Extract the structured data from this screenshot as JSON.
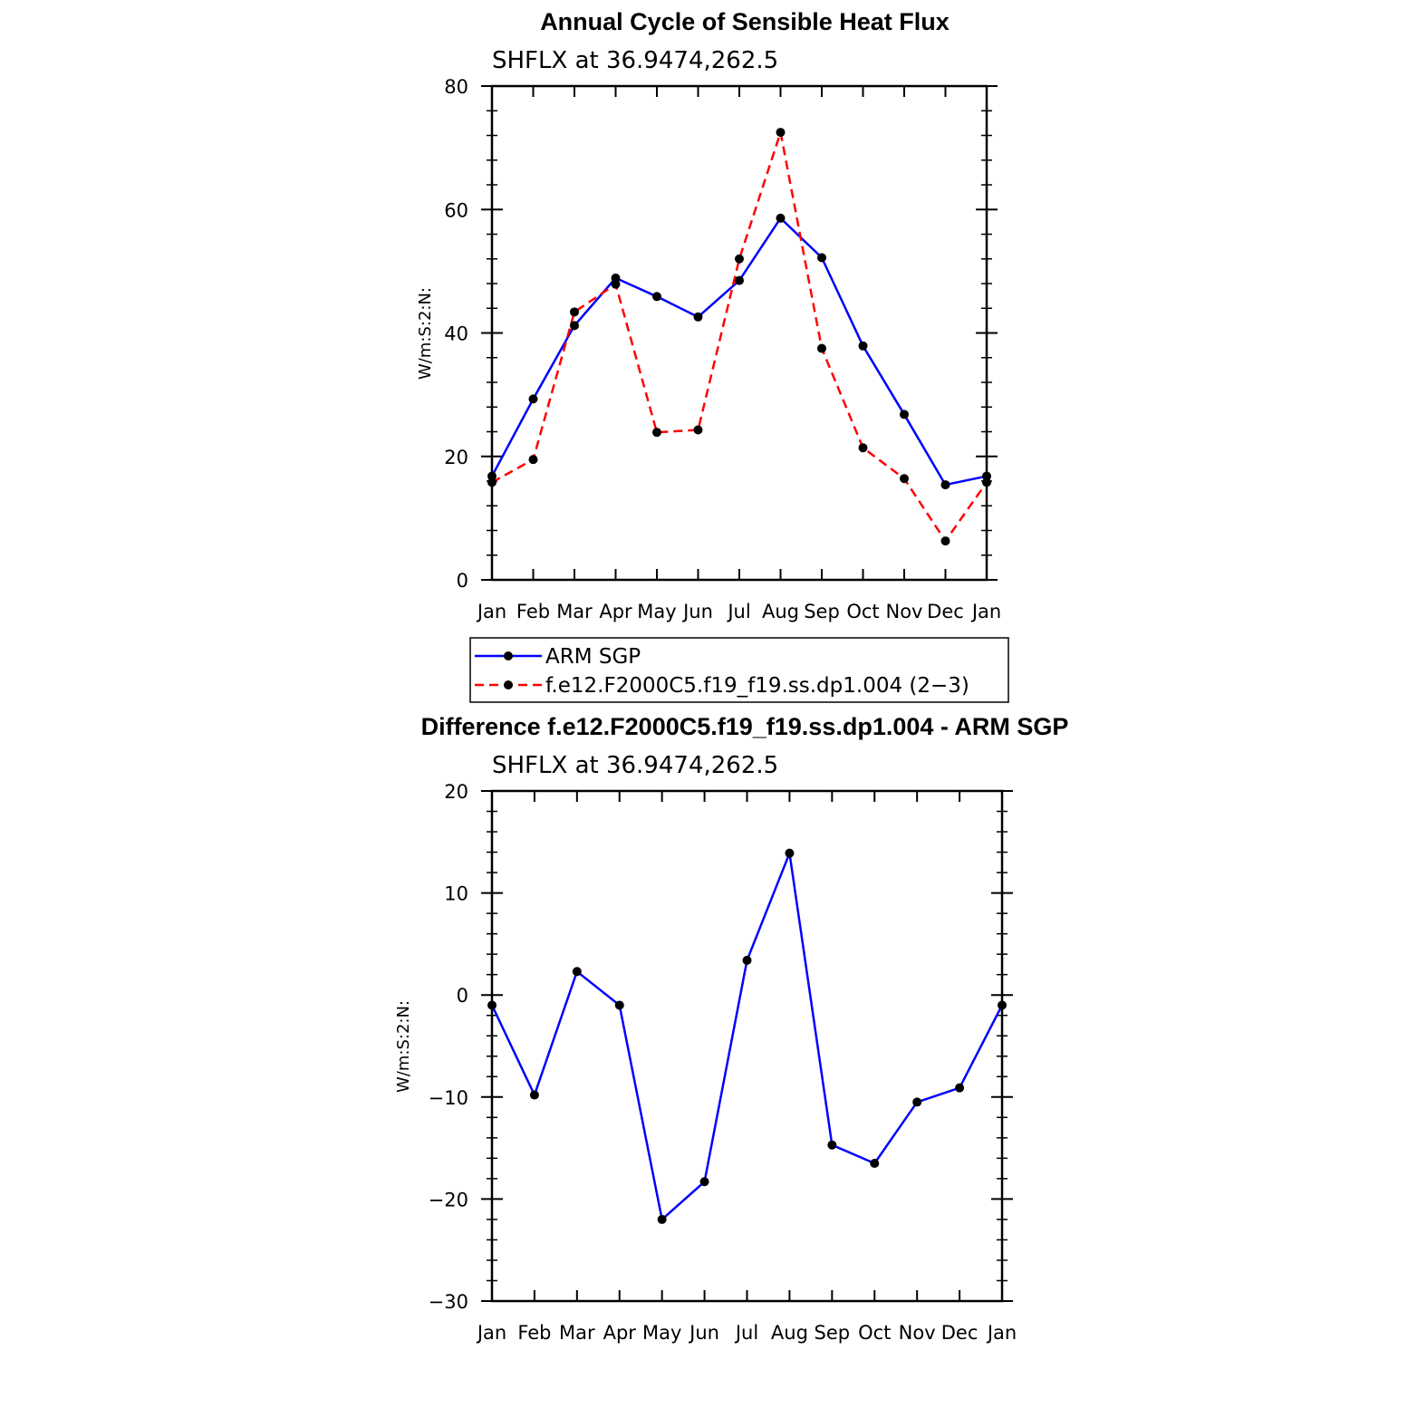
{
  "chart_data": [
    {
      "type": "line",
      "title": "Annual Cycle of Sensible Heat Flux",
      "subtitle": "SHFLX at 36.9474,262.5",
      "ylabel": "W/m:S:2:N:",
      "xlabel": "",
      "categories": [
        "Jan",
        "Feb",
        "Mar",
        "Apr",
        "May",
        "Jun",
        "Jul",
        "Aug",
        "Sep",
        "Oct",
        "Nov",
        "Dec",
        "Jan"
      ],
      "ylim": [
        0,
        80
      ],
      "yticks": [
        0,
        20,
        40,
        60,
        80
      ],
      "grid": false,
      "legend_position": "below",
      "series": [
        {
          "name": "ARM SGP",
          "color": "#0000ff",
          "dash": "solid",
          "values": [
            16.8,
            29.3,
            41.2,
            48.9,
            45.9,
            42.6,
            48.5,
            58.6,
            52.2,
            37.9,
            26.8,
            15.4,
            16.8
          ]
        },
        {
          "name": "f.e12.F2000C5.f19_f19.ss.dp1.004 (2−3)",
          "color": "#ff0000",
          "dash": "dashed",
          "values": [
            15.8,
            19.5,
            43.4,
            47.9,
            23.9,
            24.3,
            52.0,
            72.5,
            37.5,
            21.4,
            16.4,
            6.3,
            15.8
          ]
        }
      ]
    },
    {
      "type": "line",
      "title": "Difference f.e12.F2000C5.f19_f19.ss.dp1.004 - ARM SGP",
      "subtitle": "SHFLX at 36.9474,262.5",
      "ylabel": "W/m:S:2:N:",
      "xlabel": "",
      "categories": [
        "Jan",
        "Feb",
        "Mar",
        "Apr",
        "May",
        "Jun",
        "Jul",
        "Aug",
        "Sep",
        "Oct",
        "Nov",
        "Dec",
        "Jan"
      ],
      "ylim": [
        -30,
        20
      ],
      "yticks": [
        -30,
        -20,
        -10,
        0,
        10,
        20
      ],
      "ytick_labels": [
        "−30",
        "−20",
        "−10",
        "0",
        "10",
        "20"
      ],
      "grid": false,
      "series": [
        {
          "color": "#0000ff",
          "dash": "solid",
          "values": [
            -1.0,
            -9.8,
            2.3,
            -1.0,
            -22.0,
            -18.3,
            3.4,
            13.9,
            -14.7,
            -16.5,
            -10.5,
            -9.1,
            -1.0
          ]
        }
      ]
    }
  ]
}
